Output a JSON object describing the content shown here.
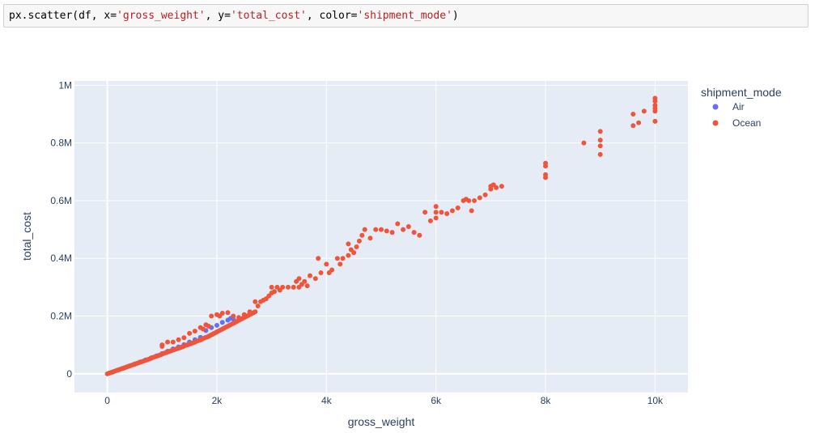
{
  "code_cell": {
    "fn": "px.scatter(df, x=",
    "x_arg": "'gross_weight'",
    "y_prefix": ", y=",
    "y_arg": "'total_cost'",
    "color_prefix": ", color=",
    "color_arg": "'shipment_mode'",
    "suffix": ")"
  },
  "colors": {
    "plot_bg": "#e5ecf6",
    "grid": "#ffffff",
    "air": "#636efa",
    "ocean": "#ef553b",
    "axis_text": "#2a3f5f"
  },
  "chart_data": {
    "type": "scatter",
    "xlabel": "gross_weight",
    "ylabel": "total_cost",
    "xlim": [
      -600,
      10600
    ],
    "ylim": [
      -65000,
      1015000
    ],
    "x_ticks": [
      0,
      2000,
      4000,
      6000,
      8000,
      10000
    ],
    "x_tick_labels": [
      "0",
      "2k",
      "4k",
      "6k",
      "8k",
      "10k"
    ],
    "y_ticks": [
      0,
      200000,
      400000,
      600000,
      800000,
      1000000
    ],
    "y_tick_labels": [
      "0",
      "0.2M",
      "0.4M",
      "0.6M",
      "0.8M",
      "1M"
    ],
    "grid": true,
    "legend": {
      "title": "shipment_mode",
      "placement": "top-right"
    },
    "series": [
      {
        "name": "Air",
        "color": "#636efa",
        "points": [
          [
            100,
            6000
          ],
          [
            200,
            13000
          ],
          [
            300,
            20000
          ],
          [
            400,
            27000
          ],
          [
            500,
            34000
          ],
          [
            600,
            41000
          ],
          [
            700,
            48000
          ],
          [
            800,
            55000
          ],
          [
            900,
            62000
          ],
          [
            1000,
            70000
          ],
          [
            1100,
            78000
          ],
          [
            1200,
            86000
          ],
          [
            1300,
            93000
          ],
          [
            1400,
            101000
          ],
          [
            1500,
            110000
          ],
          [
            1600,
            118000
          ],
          [
            1700,
            126000
          ],
          [
            1800,
            150000
          ],
          [
            1900,
            160000
          ],
          [
            2000,
            168000
          ],
          [
            2100,
            178000
          ],
          [
            2200,
            186000
          ],
          [
            2250,
            192000
          ],
          [
            2300,
            190000
          ]
        ]
      },
      {
        "name": "Ocean",
        "color": "#ef553b",
        "points": [
          [
            0,
            0
          ],
          [
            30,
            2000
          ],
          [
            60,
            4000
          ],
          [
            90,
            6000
          ],
          [
            120,
            8000
          ],
          [
            150,
            10000
          ],
          [
            180,
            12000
          ],
          [
            210,
            14000
          ],
          [
            240,
            16000
          ],
          [
            270,
            18000
          ],
          [
            300,
            20000
          ],
          [
            330,
            22000
          ],
          [
            360,
            24000
          ],
          [
            390,
            26000
          ],
          [
            420,
            28000
          ],
          [
            450,
            30000
          ],
          [
            480,
            32000
          ],
          [
            510,
            34000
          ],
          [
            540,
            36000
          ],
          [
            570,
            38000
          ],
          [
            600,
            40000
          ],
          [
            630,
            42000
          ],
          [
            660,
            44000
          ],
          [
            690,
            46000
          ],
          [
            720,
            48000
          ],
          [
            750,
            50000
          ],
          [
            780,
            52000
          ],
          [
            810,
            55000
          ],
          [
            840,
            57000
          ],
          [
            870,
            59000
          ],
          [
            900,
            61000
          ],
          [
            930,
            63000
          ],
          [
            960,
            65000
          ],
          [
            990,
            67000
          ],
          [
            1020,
            70000
          ],
          [
            1050,
            72000
          ],
          [
            1080,
            74000
          ],
          [
            1110,
            76000
          ],
          [
            1140,
            78000
          ],
          [
            1170,
            80000
          ],
          [
            1200,
            82000
          ],
          [
            1230,
            84000
          ],
          [
            1260,
            86000
          ],
          [
            1290,
            88000
          ],
          [
            1320,
            90000
          ],
          [
            1350,
            92000
          ],
          [
            1380,
            94000
          ],
          [
            1410,
            97000
          ],
          [
            1440,
            99000
          ],
          [
            1470,
            101000
          ],
          [
            1500,
            103000
          ],
          [
            1530,
            105000
          ],
          [
            1560,
            107000
          ],
          [
            1590,
            109000
          ],
          [
            1620,
            112000
          ],
          [
            1650,
            114000
          ],
          [
            1680,
            116000
          ],
          [
            1710,
            118000
          ],
          [
            1740,
            121000
          ],
          [
            1770,
            124000
          ],
          [
            1800,
            126000
          ],
          [
            1830,
            128000
          ],
          [
            1860,
            131000
          ],
          [
            1890,
            134000
          ],
          [
            1920,
            137000
          ],
          [
            1950,
            140000
          ],
          [
            1980,
            143000
          ],
          [
            2010,
            146000
          ],
          [
            2040,
            149000
          ],
          [
            2070,
            152000
          ],
          [
            2100,
            155000
          ],
          [
            2130,
            158000
          ],
          [
            2160,
            161000
          ],
          [
            2190,
            164000
          ],
          [
            2220,
            167000
          ],
          [
            2250,
            170000
          ],
          [
            2280,
            173000
          ],
          [
            2310,
            176000
          ],
          [
            2340,
            179000
          ],
          [
            2370,
            182000
          ],
          [
            2400,
            185000
          ],
          [
            2430,
            188000
          ],
          [
            2460,
            191000
          ],
          [
            2490,
            194000
          ],
          [
            2520,
            197000
          ],
          [
            2550,
            200000
          ],
          [
            2580,
            203000
          ],
          [
            2610,
            206000
          ],
          [
            2640,
            209000
          ],
          [
            2670,
            212000
          ],
          [
            2700,
            215000
          ],
          [
            1000,
            100000
          ],
          [
            1000,
            95000
          ],
          [
            1100,
            110000
          ],
          [
            1200,
            110000
          ],
          [
            1300,
            118000
          ],
          [
            1400,
            125000
          ],
          [
            1500,
            140000
          ],
          [
            1600,
            148000
          ],
          [
            1700,
            160000
          ],
          [
            1750,
            155000
          ],
          [
            1800,
            170000
          ],
          [
            1850,
            165000
          ],
          [
            1900,
            200000
          ],
          [
            2000,
            205000
          ],
          [
            2050,
            200000
          ],
          [
            2100,
            210000
          ],
          [
            2200,
            212000
          ],
          [
            2300,
            200000
          ],
          [
            2400,
            195000
          ],
          [
            2500,
            205000
          ],
          [
            2600,
            215000
          ],
          [
            2700,
            250000
          ],
          [
            2750,
            235000
          ],
          [
            2800,
            250000
          ],
          [
            2850,
            255000
          ],
          [
            2900,
            260000
          ],
          [
            2950,
            270000
          ],
          [
            3000,
            280000
          ],
          [
            3000,
            300000
          ],
          [
            3050,
            285000
          ],
          [
            3100,
            300000
          ],
          [
            3150,
            290000
          ],
          [
            3200,
            300000
          ],
          [
            3300,
            300000
          ],
          [
            3400,
            300000
          ],
          [
            3450,
            320000
          ],
          [
            3500,
            330000
          ],
          [
            3500,
            300000
          ],
          [
            3550,
            310000
          ],
          [
            3600,
            320000
          ],
          [
            3650,
            305000
          ],
          [
            3700,
            340000
          ],
          [
            3800,
            330000
          ],
          [
            3850,
            400000
          ],
          [
            3900,
            350000
          ],
          [
            4000,
            380000
          ],
          [
            4050,
            350000
          ],
          [
            4100,
            360000
          ],
          [
            4200,
            400000
          ],
          [
            4250,
            380000
          ],
          [
            4300,
            400000
          ],
          [
            4400,
            410000
          ],
          [
            4400,
            450000
          ],
          [
            4450,
            430000
          ],
          [
            4500,
            420000
          ],
          [
            4550,
            440000
          ],
          [
            4600,
            460000
          ],
          [
            4650,
            480000
          ],
          [
            4700,
            500000
          ],
          [
            4800,
            470000
          ],
          [
            4900,
            500000
          ],
          [
            5000,
            500000
          ],
          [
            5100,
            495000
          ],
          [
            5200,
            490000
          ],
          [
            5300,
            520000
          ],
          [
            5400,
            500000
          ],
          [
            5500,
            510000
          ],
          [
            5600,
            490000
          ],
          [
            5700,
            480000
          ],
          [
            5800,
            560000
          ],
          [
            5900,
            530000
          ],
          [
            6000,
            540000
          ],
          [
            6000,
            560000
          ],
          [
            6000,
            580000
          ],
          [
            6100,
            560000
          ],
          [
            6200,
            555000
          ],
          [
            6300,
            565000
          ],
          [
            6400,
            575000
          ],
          [
            6500,
            600000
          ],
          [
            6550,
            605000
          ],
          [
            6600,
            600000
          ],
          [
            6650,
            565000
          ],
          [
            6700,
            600000
          ],
          [
            6800,
            610000
          ],
          [
            6900,
            620000
          ],
          [
            7000,
            640000
          ],
          [
            7000,
            650000
          ],
          [
            7050,
            655000
          ],
          [
            7100,
            645000
          ],
          [
            7200,
            650000
          ],
          [
            8000,
            680000
          ],
          [
            8000,
            690000
          ],
          [
            8000,
            720000
          ],
          [
            8000,
            730000
          ],
          [
            8700,
            800000
          ],
          [
            9000,
            760000
          ],
          [
            9000,
            790000
          ],
          [
            9000,
            810000
          ],
          [
            9000,
            840000
          ],
          [
            9600,
            860000
          ],
          [
            9600,
            900000
          ],
          [
            9700,
            870000
          ],
          [
            9800,
            910000
          ],
          [
            10000,
            875000
          ],
          [
            10000,
            910000
          ],
          [
            10000,
            920000
          ],
          [
            10000,
            930000
          ],
          [
            10000,
            945000
          ],
          [
            10000,
            955000
          ]
        ]
      }
    ]
  }
}
